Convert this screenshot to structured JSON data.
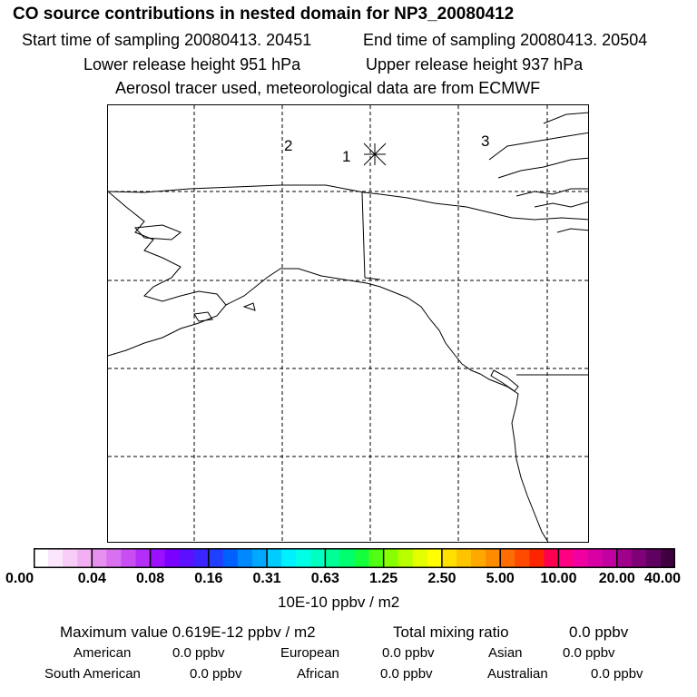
{
  "header": {
    "title": "CO  source contributions in nested domain for NP3_20080412",
    "start_label": "Start time of sampling 20080413. 20451",
    "end_label": "End time of sampling 20080413. 20504",
    "lower_label": "Lower release height  951 hPa",
    "upper_label": "Upper release height  937 hPa",
    "tracer_label": "Aerosol tracer used, meteorological data are from ECMWF"
  },
  "map": {
    "markers": [
      "1",
      "2",
      "3"
    ]
  },
  "colorbar": {
    "colors": [
      "#ffffff",
      "#fbe6fb",
      "#f7ccf7",
      "#f2b0f2",
      "#e890ef",
      "#d870f0",
      "#c84ef4",
      "#b52ef8",
      "#9a10ff",
      "#7a00ff",
      "#5c10ff",
      "#3c24ff",
      "#2040ff",
      "#0060ff",
      "#0088ff",
      "#00a8ff",
      "#00ccff",
      "#00f0ff",
      "#00ffe4",
      "#00ffc0",
      "#00ff96",
      "#00ff6e",
      "#14ff3c",
      "#50ff14",
      "#88ff00",
      "#b8ff00",
      "#e4ff00",
      "#ffff00",
      "#ffe000",
      "#ffc400",
      "#ffa800",
      "#ff8c00",
      "#ff6c00",
      "#ff4a00",
      "#ff2400",
      "#ff0050",
      "#ff0082",
      "#f000a0",
      "#d800a4",
      "#c000a0",
      "#a0008c",
      "#800078",
      "#600060",
      "#400040"
    ],
    "tick_labels": [
      "0.00",
      "0.04",
      "0.08",
      "0.16",
      "0.31",
      "0.63",
      "1.25",
      "2.50",
      "5.00",
      "10.00",
      "20.00",
      "40.00"
    ],
    "unit_label": "10E-10 ppbv / m2"
  },
  "stats": {
    "max_label": "Maximum value  0.619E-12 ppbv / m2",
    "total_label": "Total mixing ratio",
    "total_value": "0.0 ppbv",
    "american_label": "American",
    "american_value": "0.0 ppbv",
    "european_label": "European",
    "european_value": "0.0 ppbv",
    "asian_label": "Asian",
    "asian_value": "0.0 ppbv",
    "south_american_label": "South American",
    "south_american_value": "0.0 ppbv",
    "african_label": "African",
    "african_value": "0.0 ppbv",
    "australian_label": "Australian",
    "australian_value": "0.0 ppbv"
  }
}
